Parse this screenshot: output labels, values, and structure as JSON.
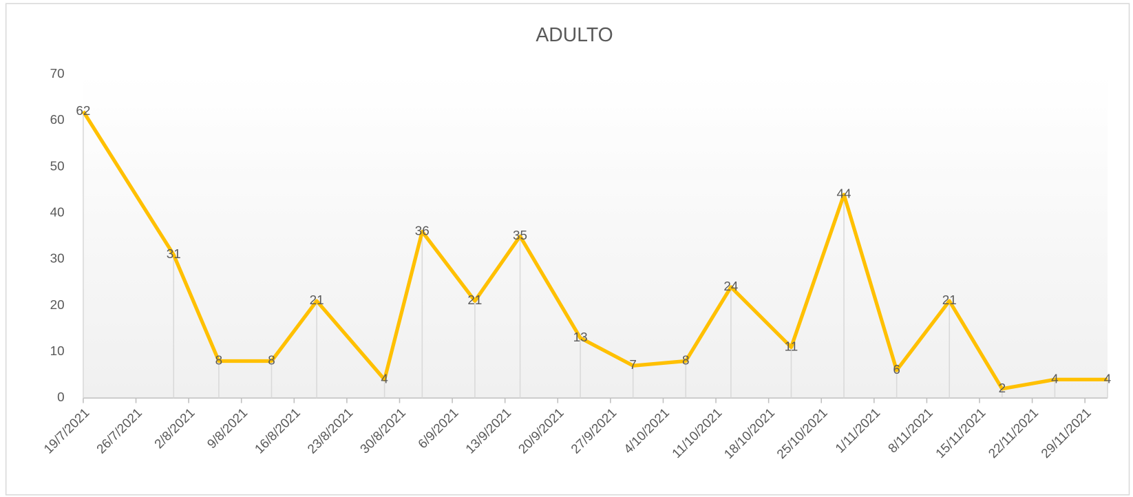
{
  "chart_data": {
    "type": "line",
    "title": "ADULTO",
    "color": "#FFC000",
    "x": [
      "2021-07-19",
      "2021-07-31",
      "2021-08-06",
      "2021-08-13",
      "2021-08-19",
      "2021-08-28",
      "2021-09-02",
      "2021-09-09",
      "2021-09-15",
      "2021-09-23",
      "2021-09-30",
      "2021-10-07",
      "2021-10-13",
      "2021-10-21",
      "2021-10-28",
      "2021-11-04",
      "2021-11-11",
      "2021-11-18",
      "2021-11-25",
      "2021-12-02"
    ],
    "values": [
      62,
      31,
      8,
      8,
      21,
      4,
      36,
      21,
      35,
      13,
      7,
      8,
      24,
      11,
      44,
      6,
      21,
      2,
      4,
      4
    ],
    "xlim": [
      "2021-07-19",
      "2021-12-02"
    ],
    "xticks": [
      {
        "value": "2021-07-19",
        "label": "19/7/2021"
      },
      {
        "value": "2021-07-26",
        "label": "26/7/2021"
      },
      {
        "value": "2021-08-02",
        "label": "2/8/2021"
      },
      {
        "value": "2021-08-09",
        "label": "9/8/2021"
      },
      {
        "value": "2021-08-16",
        "label": "16/8/2021"
      },
      {
        "value": "2021-08-23",
        "label": "23/8/2021"
      },
      {
        "value": "2021-08-30",
        "label": "30/8/2021"
      },
      {
        "value": "2021-09-06",
        "label": "6/9/2021"
      },
      {
        "value": "2021-09-13",
        "label": "13/9/2021"
      },
      {
        "value": "2021-09-20",
        "label": "20/9/2021"
      },
      {
        "value": "2021-09-27",
        "label": "27/9/2021"
      },
      {
        "value": "2021-10-04",
        "label": "4/10/2021"
      },
      {
        "value": "2021-10-11",
        "label": "11/10/2021"
      },
      {
        "value": "2021-10-18",
        "label": "18/10/2021"
      },
      {
        "value": "2021-10-25",
        "label": "25/10/2021"
      },
      {
        "value": "2021-11-01",
        "label": "1/11/2021"
      },
      {
        "value": "2021-11-08",
        "label": "8/11/2021"
      },
      {
        "value": "2021-11-15",
        "label": "15/11/2021"
      },
      {
        "value": "2021-11-22",
        "label": "22/11/2021"
      },
      {
        "value": "2021-11-29",
        "label": "29/11/2021"
      }
    ],
    "ylim": [
      0,
      70
    ],
    "yticks": [
      0,
      10,
      20,
      30,
      40,
      50,
      60,
      70
    ],
    "drop_lines": true
  }
}
